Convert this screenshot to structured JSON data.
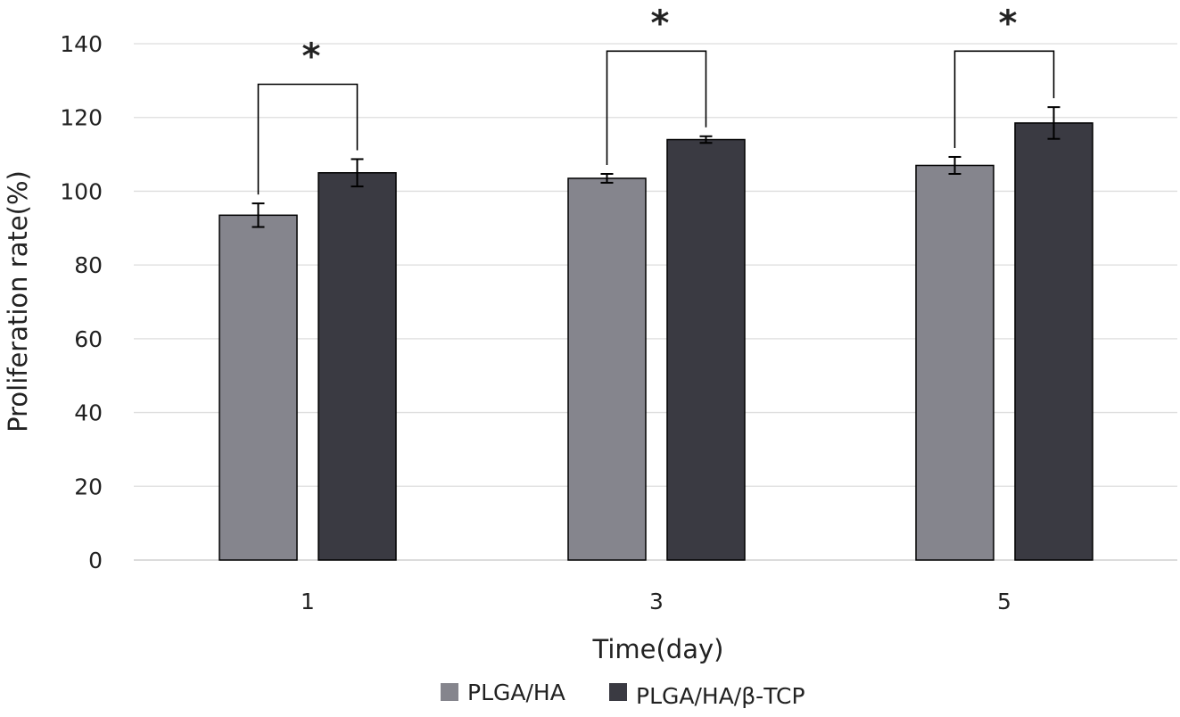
{
  "chart_data": {
    "type": "bar",
    "title": "",
    "xlabel": "Time(day)",
    "ylabel": "Proliferation rate(%)",
    "ylim": [
      0,
      140
    ],
    "yticks": [
      0,
      20,
      40,
      60,
      80,
      100,
      120,
      140
    ],
    "grid": "horizontal",
    "legend_position": "bottom",
    "categories": [
      "1",
      "3",
      "5"
    ],
    "series": [
      {
        "name": "PLGA/HA",
        "color": "#85858d",
        "values": [
          93.5,
          103.5,
          107
        ],
        "errors": [
          3.2,
          1.2,
          2.3
        ]
      },
      {
        "name": "PLGA/HA/β-TCP",
        "color": "#3a3a42",
        "values": [
          105,
          114,
          118.5
        ],
        "errors": [
          3.7,
          0.9,
          4.3
        ]
      }
    ],
    "annotations": [
      {
        "type": "significance",
        "category": "1",
        "label": "*",
        "bracket_top": 129
      },
      {
        "type": "significance",
        "category": "3",
        "label": "*",
        "bracket_top": 138
      },
      {
        "type": "significance",
        "category": "5",
        "label": "*",
        "bracket_top": 138
      }
    ]
  }
}
